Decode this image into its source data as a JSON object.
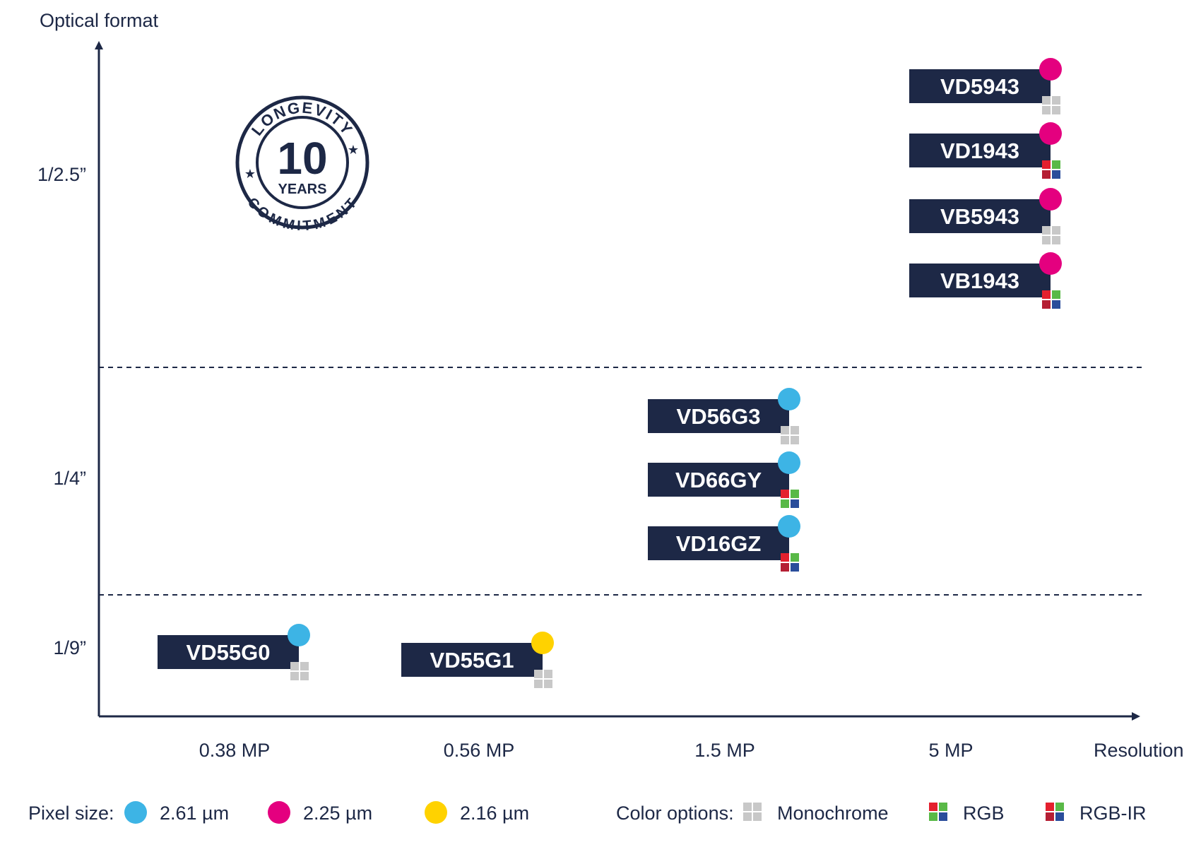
{
  "chart_data": {
    "type": "scatter",
    "ylabel": "Optical format",
    "xlabel": "Resolution",
    "x_ticks": [
      "0.38 MP",
      "0.56 MP",
      "1.5 MP",
      "5 MP"
    ],
    "y_ticks": [
      "1/2.5”",
      "1/4”",
      "1/9”"
    ],
    "points": [
      {
        "name": "VD5943",
        "x": "5 MP",
        "y": "1/2.5”",
        "pixel_size": "2.25 µm",
        "color_option": "Monochrome"
      },
      {
        "name": "VD1943",
        "x": "5 MP",
        "y": "1/2.5”",
        "pixel_size": "2.25 µm",
        "color_option": "RGB-IR"
      },
      {
        "name": "VB5943",
        "x": "5 MP",
        "y": "1/2.5”",
        "pixel_size": "2.25 µm",
        "color_option": "Monochrome"
      },
      {
        "name": "VB1943",
        "x": "5 MP",
        "y": "1/2.5”",
        "pixel_size": "2.25 µm",
        "color_option": "RGB-IR"
      },
      {
        "name": "VD56G3",
        "x": "1.5 MP",
        "y": "1/4”",
        "pixel_size": "2.61 µm",
        "color_option": "Monochrome"
      },
      {
        "name": "VD66GY",
        "x": "1.5 MP",
        "y": "1/4”",
        "pixel_size": "2.61 µm",
        "color_option": "RGB"
      },
      {
        "name": "VD16GZ",
        "x": "1.5 MP",
        "y": "1/4”",
        "pixel_size": "2.61 µm",
        "color_option": "RGB-IR"
      },
      {
        "name": "VD55G0",
        "x": "0.38 MP",
        "y": "1/9”",
        "pixel_size": "2.61 µm",
        "color_option": "Monochrome"
      },
      {
        "name": "VD55G1",
        "x": "0.56 MP",
        "y": "1/9”",
        "pixel_size": "2.16 µm",
        "color_option": "Monochrome"
      }
    ],
    "legend": {
      "pixel_size_label": "Pixel size:",
      "pixel_sizes": [
        {
          "label": "2.61 µm",
          "color": "#3db4e5"
        },
        {
          "label": "2.25 µm",
          "color": "#e4007f"
        },
        {
          "label": "2.16 µm",
          "color": "#ffd200"
        }
      ],
      "color_options_label": "Color options:",
      "color_options": [
        {
          "label": "Monochrome",
          "icon": "mono-grid-icon"
        },
        {
          "label": "RGB",
          "icon": "rgb-grid-icon"
        },
        {
          "label": "RGB-IR",
          "icon": "rgbir-grid-icon"
        }
      ]
    },
    "badge": {
      "top_text": "LONGEVITY",
      "number": "10",
      "unit": "YEARS",
      "bottom_text": "COMMITMENT"
    }
  },
  "colors": {
    "navy": "#1d2846",
    "mono": "#c8c8c8",
    "red": "#e4202e",
    "green": "#59b947",
    "blue": "#2a4d9b",
    "darkred": "#b51f34"
  }
}
